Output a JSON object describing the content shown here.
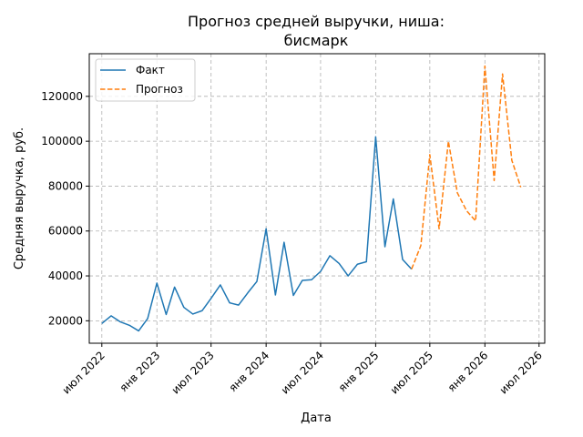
{
  "chart_data": {
    "type": "line",
    "title": [
      "Прогноз средней выручки, ниша:",
      "бисмарк"
    ],
    "xlabel": "Дата",
    "ylabel": "Средняя выручка, руб.",
    "grid": true,
    "legend_position": "top-left",
    "xlim": [
      "2022-05-20",
      "2026-07-20"
    ],
    "ylim": [
      10000,
      139000
    ],
    "x_ticks": [
      {
        "date": "2022-07-01",
        "label": "июл 2022"
      },
      {
        "date": "2023-01-01",
        "label": "янв 2023"
      },
      {
        "date": "2023-07-01",
        "label": "июл 2023"
      },
      {
        "date": "2024-01-01",
        "label": "янв 2024"
      },
      {
        "date": "2024-07-01",
        "label": "июл 2024"
      },
      {
        "date": "2025-01-01",
        "label": "янв 2025"
      },
      {
        "date": "2025-07-01",
        "label": "июл 2025"
      },
      {
        "date": "2026-01-01",
        "label": "янв 2026"
      },
      {
        "date": "2026-07-01",
        "label": "июл 2026"
      }
    ],
    "y_ticks": [
      {
        "value": 20000,
        "label": "20000"
      },
      {
        "value": 40000,
        "label": "40000"
      },
      {
        "value": 60000,
        "label": "60000"
      },
      {
        "value": 80000,
        "label": "80000"
      },
      {
        "value": 100000,
        "label": "100000"
      },
      {
        "value": 120000,
        "label": "120000"
      }
    ],
    "series": [
      {
        "name": "Факт",
        "color": "#1f77b4",
        "style": "solid",
        "points": [
          [
            "2022-07-01",
            18800
          ],
          [
            "2022-08-01",
            22200
          ],
          [
            "2022-09-01",
            19500
          ],
          [
            "2022-10-01",
            18000
          ],
          [
            "2022-11-01",
            15500
          ],
          [
            "2022-12-01",
            21000
          ],
          [
            "2023-01-01",
            36800
          ],
          [
            "2023-02-01",
            22800
          ],
          [
            "2023-03-01",
            35000
          ],
          [
            "2023-04-01",
            26000
          ],
          [
            "2023-05-01",
            23000
          ],
          [
            "2023-06-01",
            24500
          ],
          [
            "2023-07-01",
            30000
          ],
          [
            "2023-08-01",
            36000
          ],
          [
            "2023-09-01",
            28000
          ],
          [
            "2023-10-01",
            27000
          ],
          [
            "2023-11-01",
            32500
          ],
          [
            "2023-12-01",
            37500
          ],
          [
            "2024-01-01",
            61000
          ],
          [
            "2024-02-01",
            31500
          ],
          [
            "2024-03-01",
            55000
          ],
          [
            "2024-04-01",
            31300
          ],
          [
            "2024-05-01",
            38000
          ],
          [
            "2024-06-01",
            38300
          ],
          [
            "2024-07-01",
            42000
          ],
          [
            "2024-08-01",
            49000
          ],
          [
            "2024-09-01",
            45500
          ],
          [
            "2024-10-01",
            40000
          ],
          [
            "2024-11-01",
            45200
          ],
          [
            "2024-12-01",
            46300
          ],
          [
            "2025-01-01",
            102000
          ],
          [
            "2025-02-01",
            53000
          ],
          [
            "2025-03-01",
            74300
          ],
          [
            "2025-04-01",
            47300
          ],
          [
            "2025-05-01",
            43000
          ]
        ]
      },
      {
        "name": "Прогноз",
        "color": "#ff7f0e",
        "style": "dashed",
        "points": [
          [
            "2025-05-01",
            43000
          ],
          [
            "2025-06-01",
            53500
          ],
          [
            "2025-07-01",
            94000
          ],
          [
            "2025-08-01",
            61000
          ],
          [
            "2025-09-01",
            100000
          ],
          [
            "2025-10-01",
            77000
          ],
          [
            "2025-11-01",
            69000
          ],
          [
            "2025-12-01",
            64500
          ],
          [
            "2026-01-01",
            133500
          ],
          [
            "2026-02-01",
            82500
          ],
          [
            "2026-03-01",
            130000
          ],
          [
            "2026-04-01",
            91500
          ],
          [
            "2026-05-01",
            79500
          ]
        ]
      }
    ]
  }
}
